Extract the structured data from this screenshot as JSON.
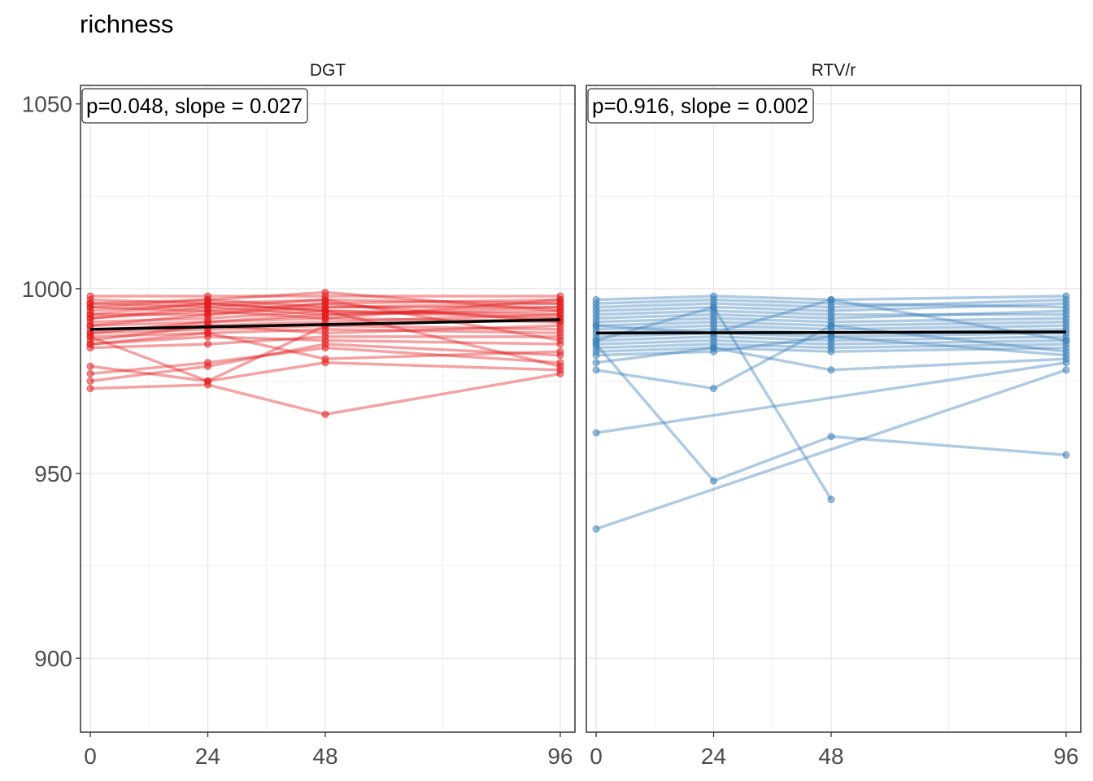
{
  "chart_data": {
    "type": "line",
    "title": "richness",
    "xlabel": "",
    "ylabel": "",
    "x_ticks": [
      0,
      24,
      48,
      96
    ],
    "y_ticks": [
      900,
      950,
      1000,
      1050
    ],
    "xlim": [
      -2,
      99
    ],
    "ylim": [
      880,
      1055
    ],
    "grid": true,
    "panels": [
      {
        "name": "DGT",
        "color": "#e41a1c",
        "annotation": "p=0.048, slope = 0.027",
        "trend": {
          "x": [
            0,
            96
          ],
          "y": [
            989.0,
            991.6
          ]
        },
        "subjects": [
          [
            998,
            998,
            998,
            998
          ],
          [
            997,
            996,
            997,
            996
          ],
          [
            996,
            997,
            995,
            995
          ],
          [
            995,
            994,
            996,
            997
          ],
          [
            994,
            996,
            994,
            993
          ],
          [
            993,
            993,
            995,
            996
          ],
          [
            992,
            995,
            993,
            994
          ],
          [
            991,
            992,
            994,
            992
          ],
          [
            990,
            991,
            992,
            991
          ],
          [
            989,
            990,
            991,
            993
          ],
          [
            988,
            989,
            990,
            989
          ],
          [
            987,
            988,
            989,
            988
          ],
          [
            986,
            990,
            988,
            990
          ],
          [
            985,
            987,
            986,
            985
          ],
          [
            984,
            985,
            987,
            987
          ],
          [
            992,
            994,
            992,
            997
          ],
          [
            995,
            997,
            999,
            994
          ],
          [
            990,
            993,
            996,
            991
          ],
          [
            988,
            991,
            993,
            995
          ],
          [
            985,
            988,
            981,
            983
          ],
          [
            979,
            975,
            990,
            992
          ],
          [
            977,
            980,
            984,
            980
          ],
          [
            975,
            979,
            985,
            982
          ],
          [
            973,
            974,
            966,
            977
          ],
          [
            993,
            996,
            994,
            979
          ],
          [
            987,
            975,
            980,
            978
          ],
          [
            996,
            995,
            997,
            986
          ]
        ]
      },
      {
        "name": "RTV/r",
        "color": "#377eb8",
        "annotation": "p=0.916, slope = 0.002",
        "trend": {
          "x": [
            0,
            96
          ],
          "y": [
            988.0,
            988.3
          ]
        },
        "subjects": [
          [
            997,
            998,
            997,
            998
          ],
          [
            996,
            997,
            996,
            995
          ],
          [
            995,
            996,
            995,
            997
          ],
          [
            994,
            995,
            994,
            996
          ],
          [
            993,
            994,
            993,
            993
          ],
          [
            992,
            993,
            992,
            994
          ],
          [
            991,
            992,
            991,
            992
          ],
          [
            990,
            991,
            990,
            991
          ],
          [
            989,
            990,
            989,
            990
          ],
          [
            988,
            989,
            988,
            989
          ],
          [
            987,
            988,
            987,
            988
          ],
          [
            986,
            987,
            986,
            987
          ],
          [
            985,
            986,
            985,
            986
          ],
          [
            984,
            985,
            984,
            985
          ],
          [
            983,
            984,
            983,
            984
          ],
          [
            982,
            983,
            987,
            982
          ],
          [
            980,
            984,
            978,
            981
          ],
          [
            978,
            973,
            990,
            983
          ],
          [
            961,
            null,
            null,
            980
          ],
          [
            935,
            null,
            null,
            978
          ],
          [
            985,
            948,
            960,
            955
          ],
          [
            986,
            995,
            943,
            null
          ],
          [
            990,
            988,
            997,
            986
          ]
        ]
      }
    ]
  }
}
